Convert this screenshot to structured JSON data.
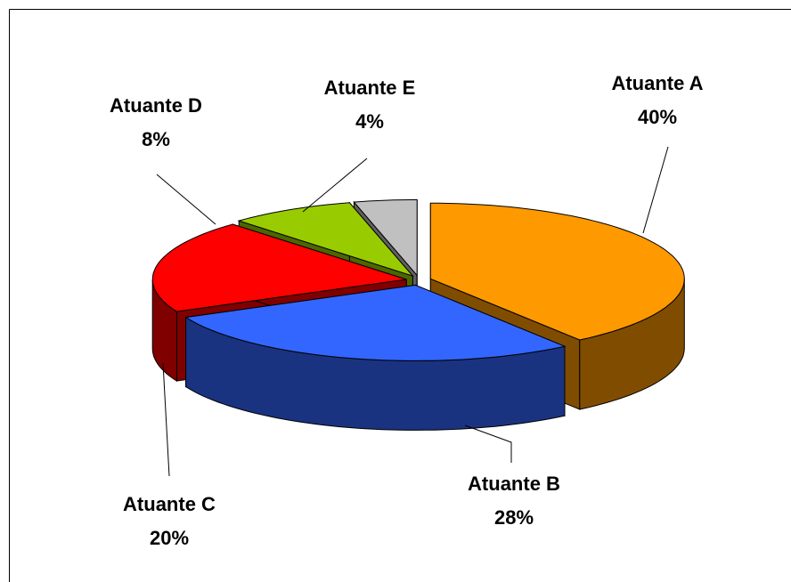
{
  "chart_data": {
    "type": "pie3d",
    "categories": [
      "Atuante A",
      "Atuante B",
      "Atuante C",
      "Atuante D",
      "Atuante E"
    ],
    "values": [
      40,
      28,
      20,
      8,
      4
    ],
    "value_labels": [
      "40%",
      "28%",
      "20%",
      "8%",
      "4%"
    ],
    "colors": [
      "#FF9900",
      "#3366FF",
      "#FF0000",
      "#99CC00",
      "#C0C0C0"
    ]
  }
}
